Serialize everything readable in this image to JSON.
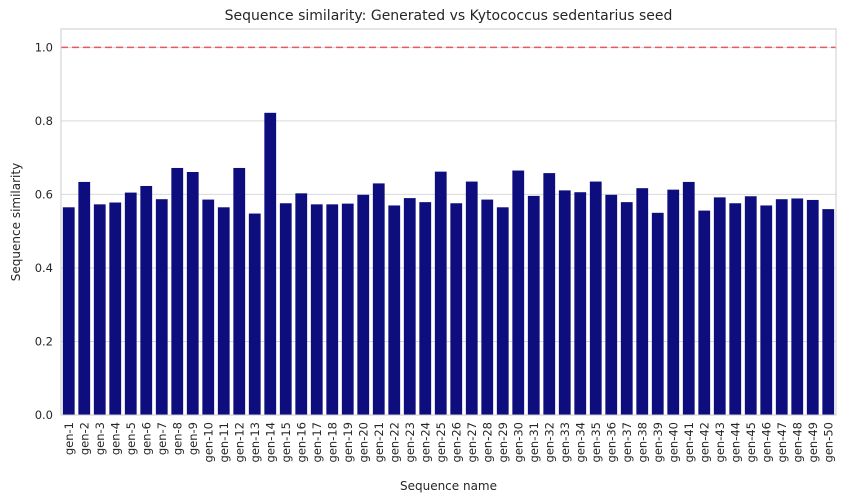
{
  "chart_data": {
    "type": "bar",
    "title": "Sequence similarity: Generated vs Kytococcus sedentarius seed",
    "xlabel": "Sequence name",
    "ylabel": "Sequence similarity",
    "ylim": [
      0,
      1.05
    ],
    "yticks": [
      "0.0",
      "0.2",
      "0.4",
      "0.6",
      "0.8",
      "1.0"
    ],
    "grid": true,
    "reference_line": {
      "y": 1.0,
      "style": "dashed",
      "color": "#e8595f"
    },
    "bar_color": "#0d0d7d",
    "categories": [
      "gen-1",
      "gen-2",
      "gen-3",
      "gen-4",
      "gen-5",
      "gen-6",
      "gen-7",
      "gen-8",
      "gen-9",
      "gen-10",
      "gen-11",
      "gen-12",
      "gen-13",
      "gen-14",
      "gen-15",
      "gen-16",
      "gen-17",
      "gen-18",
      "gen-19",
      "gen-20",
      "gen-21",
      "gen-22",
      "gen-23",
      "gen-24",
      "gen-25",
      "gen-26",
      "gen-27",
      "gen-28",
      "gen-29",
      "gen-30",
      "gen-31",
      "gen-32",
      "gen-33",
      "gen-34",
      "gen-35",
      "gen-36",
      "gen-37",
      "gen-38",
      "gen-39",
      "gen-40",
      "gen-41",
      "gen-42",
      "gen-43",
      "gen-44",
      "gen-45",
      "gen-46",
      "gen-47",
      "gen-48",
      "gen-49",
      "gen-50"
    ],
    "values": [
      0.565,
      0.634,
      0.573,
      0.578,
      0.605,
      0.623,
      0.587,
      0.672,
      0.661,
      0.586,
      0.565,
      0.672,
      0.548,
      0.822,
      0.576,
      0.603,
      0.573,
      0.573,
      0.575,
      0.599,
      0.63,
      0.57,
      0.59,
      0.579,
      0.662,
      0.576,
      0.635,
      0.586,
      0.565,
      0.665,
      0.596,
      0.658,
      0.611,
      0.606,
      0.635,
      0.599,
      0.579,
      0.617,
      0.55,
      0.613,
      0.634,
      0.556,
      0.592,
      0.576,
      0.595,
      0.57,
      0.587,
      0.589,
      0.585,
      0.56
    ]
  }
}
